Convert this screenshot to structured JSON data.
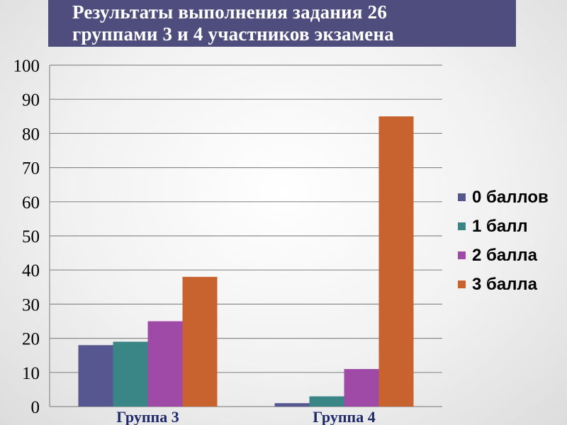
{
  "title": "Результаты выполнения задания 26\nгруппами 3 и 4 участников экзамена",
  "colors": {
    "title_bg": "#4f4c7e",
    "grid": "#8c8c8c",
    "series": [
      "#565690",
      "#3a8686",
      "#a04aa8",
      "#c8622f"
    ],
    "category_label": "#1f2a6a"
  },
  "chart_data": {
    "type": "bar",
    "categories": [
      "Группа 3",
      "Группа 4"
    ],
    "series": [
      {
        "name": "0 баллов",
        "values": [
          18,
          1
        ]
      },
      {
        "name": "1 балл",
        "values": [
          19,
          3
        ]
      },
      {
        "name": "2 балла",
        "values": [
          25,
          11
        ]
      },
      {
        "name": "3 балла",
        "values": [
          38,
          85
        ]
      }
    ],
    "ylim": [
      0,
      100
    ],
    "yticks": [
      "0",
      "10",
      "20",
      "30",
      "40",
      "50",
      "60",
      "70",
      "80",
      "90",
      "100"
    ],
    "grid": true,
    "legend_position": "right"
  }
}
